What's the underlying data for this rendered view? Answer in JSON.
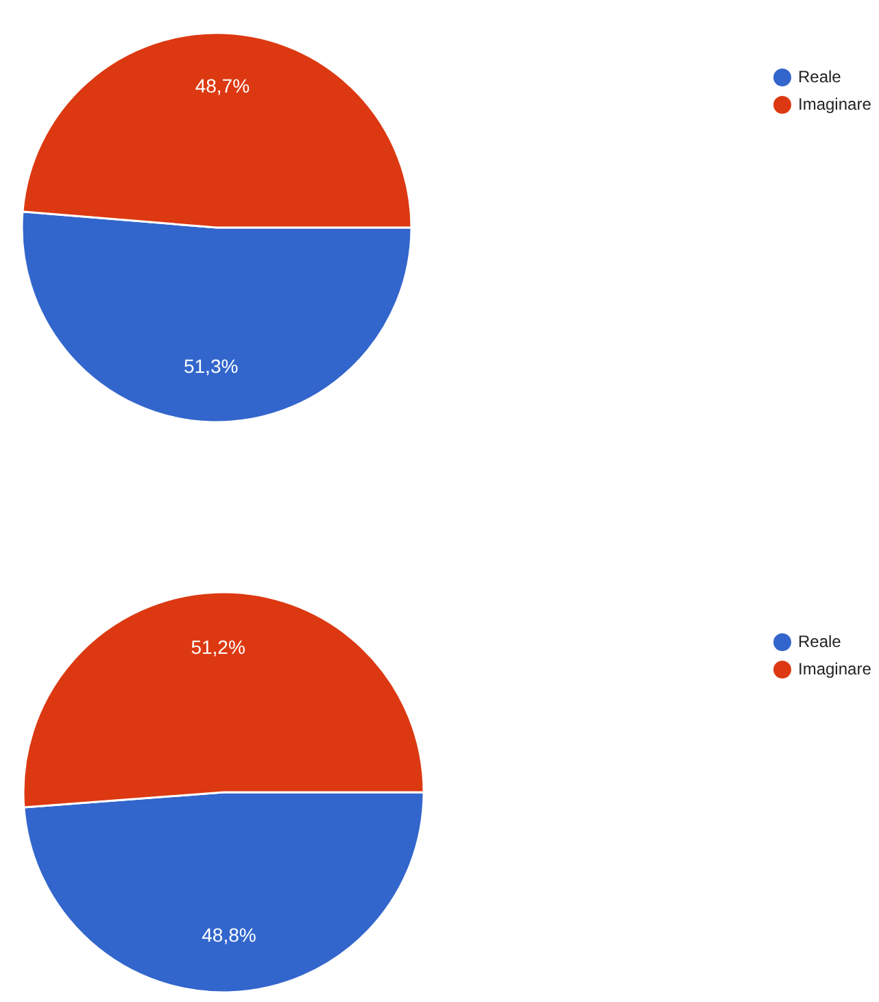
{
  "chart_data": [
    {
      "type": "pie",
      "categories": [
        "Reale",
        "Imaginare"
      ],
      "values": [
        51.3,
        48.7
      ],
      "value_labels": [
        "51,3%",
        "48,7%"
      ],
      "colors": [
        "#3366cc",
        "#dc3912"
      ],
      "legend": "top right"
    },
    {
      "type": "pie",
      "categories": [
        "Reale",
        "Imaginare"
      ],
      "values": [
        48.8,
        51.2
      ],
      "value_labels": [
        "48,8%",
        "51,2%"
      ],
      "colors": [
        "#3366cc",
        "#dc3912"
      ],
      "legend": "top right"
    }
  ]
}
